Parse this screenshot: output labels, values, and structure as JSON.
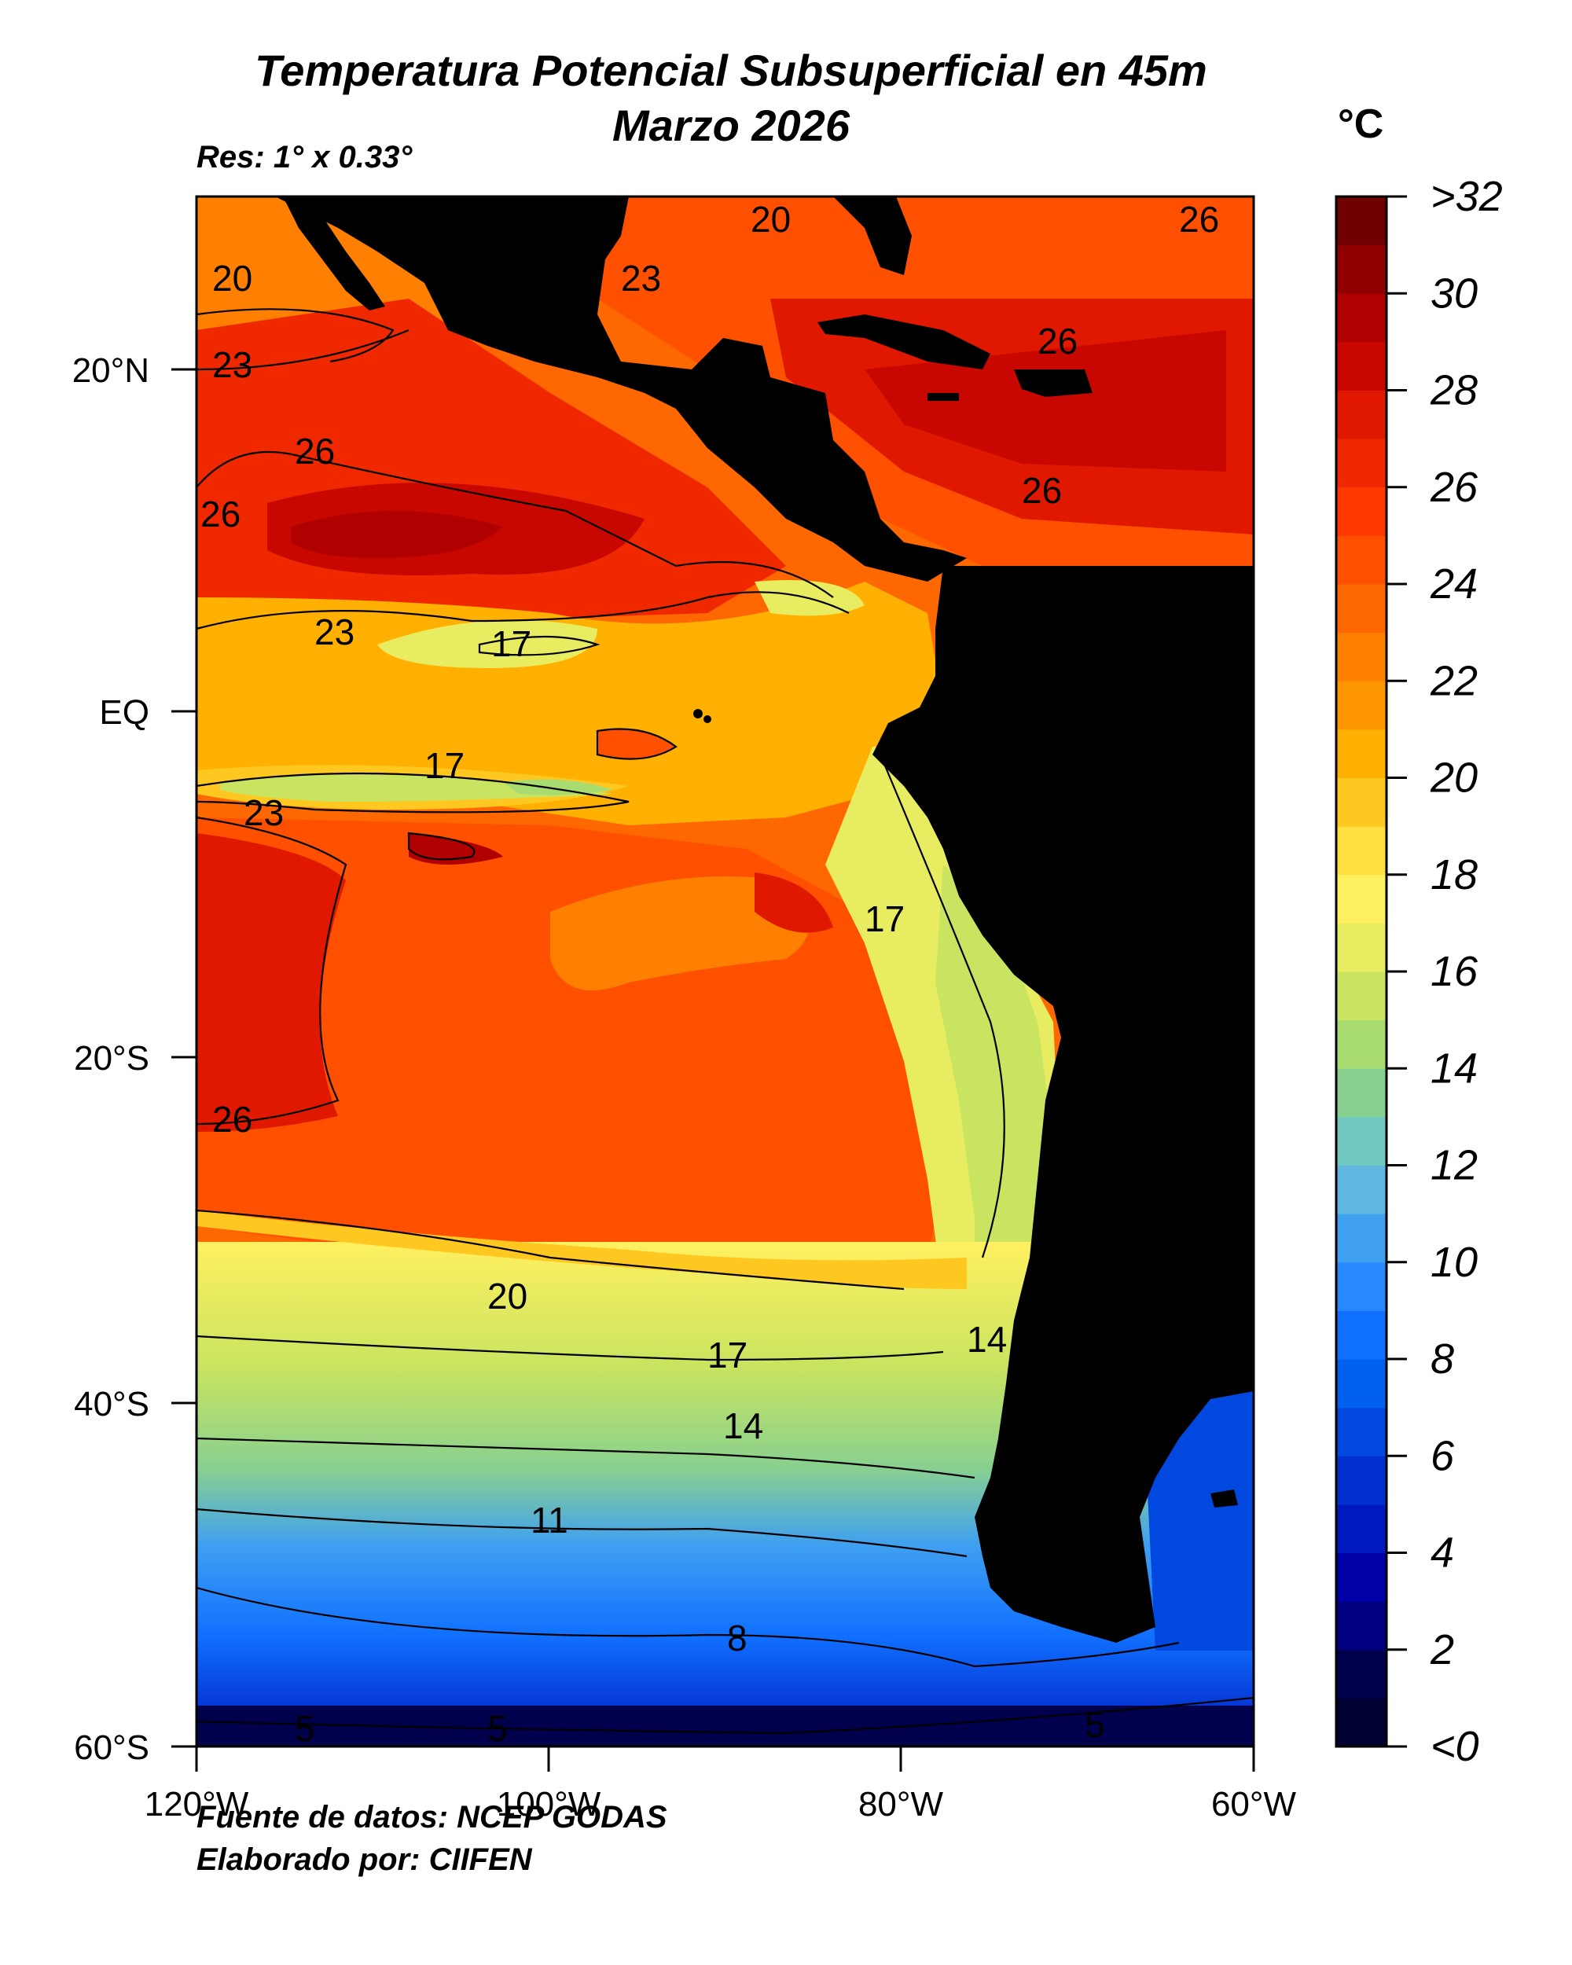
{
  "title_line1": "Temperatura Potencial Subsuperficial en 45m",
  "title_line2": "Marzo 2026",
  "resolution": "Res: 1° x 0.33°",
  "unit": "°C",
  "footer_source": "Fuente de datos: NCEP GODAS",
  "footer_author": "Elaborado por: CIIFEN",
  "map": {
    "lat_ticks": [
      "20°N",
      "EQ",
      "20°S",
      "40°S",
      "60°S"
    ],
    "lon_ticks": [
      "120°W",
      "100°W",
      "80°W",
      "60°W"
    ],
    "contour_labels": [
      "20",
      "23",
      "26",
      "20",
      "23",
      "26",
      "26",
      "26",
      "26",
      "23",
      "17",
      "17",
      "23",
      "17",
      "26",
      "20",
      "17",
      "14",
      "11",
      "8",
      "5",
      "5",
      "5",
      "14"
    ],
    "land_color": "#000000"
  },
  "colorbar": {
    "labels": [
      ">32",
      "30",
      "28",
      "26",
      "24",
      "22",
      "20",
      "18",
      "16",
      "14",
      "12",
      "10",
      "8",
      "6",
      "4",
      "2",
      "<0"
    ],
    "colors": [
      "#000033",
      "#00004d",
      "#000080",
      "#0000a8",
      "#0018c0",
      "#0030d0",
      "#0048e0",
      "#0060f0",
      "#1070ff",
      "#2888ff",
      "#40a0f0",
      "#60b8e0",
      "#70c8c0",
      "#88d090",
      "#a8dc70",
      "#c8e460",
      "#e8ec60",
      "#fff060",
      "#ffe040",
      "#ffc820",
      "#ffb000",
      "#ff9800",
      "#ff8000",
      "#ff6800",
      "#ff5000",
      "#ff3800",
      "#f02800",
      "#e01800",
      "#c80800",
      "#b00000",
      "#900000",
      "#700000"
    ]
  }
}
